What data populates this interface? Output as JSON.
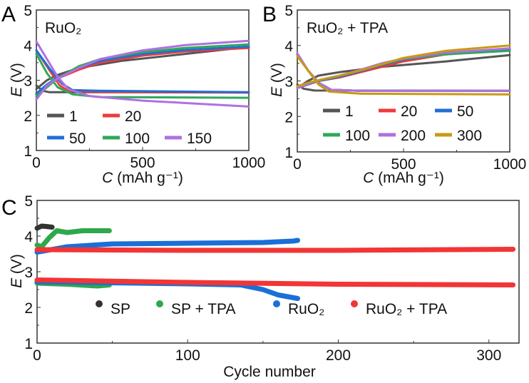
{
  "chart_data": [
    {
      "panel": "A",
      "type": "line",
      "title": "RuO₂",
      "xlabel_italic": "C",
      "xlabel": " (mAh g⁻¹)",
      "ylabel_italic": "E",
      "ylabel": " (V)",
      "xlim": [
        0,
        1000
      ],
      "ylim": [
        1,
        5
      ],
      "xticks": [
        "0",
        "500",
        "1000"
      ],
      "xtick_values": [
        0,
        500,
        1000
      ],
      "yticks": [
        "1",
        "2",
        "3",
        "4",
        "5"
      ],
      "ytick_values": [
        1,
        2,
        3,
        4,
        5
      ],
      "legend_placement": "lower-left",
      "series": [
        {
          "name": "1",
          "color": "#555555",
          "discharge": [
            [
              0,
              2.85
            ],
            [
              30,
              2.7
            ],
            [
              60,
              2.66
            ],
            [
              200,
              2.66
            ],
            [
              1000,
              2.65
            ]
          ],
          "charge": [
            [
              0,
              2.75
            ],
            [
              50,
              3.0
            ],
            [
              100,
              3.15
            ],
            [
              200,
              3.35
            ],
            [
              400,
              3.55
            ],
            [
              700,
              3.75
            ],
            [
              1000,
              3.95
            ]
          ]
        },
        {
          "name": "20",
          "color": "#f03a3a",
          "discharge": [
            [
              0,
              3.85
            ],
            [
              60,
              3.3
            ],
            [
              110,
              2.85
            ],
            [
              150,
              2.7
            ],
            [
              300,
              2.67
            ],
            [
              1000,
              2.65
            ]
          ],
          "charge": [
            [
              0,
              2.6
            ],
            [
              50,
              2.85
            ],
            [
              100,
              3.05
            ],
            [
              200,
              3.3
            ],
            [
              300,
              3.5
            ],
            [
              500,
              3.7
            ],
            [
              700,
              3.82
            ],
            [
              1000,
              3.92
            ]
          ]
        },
        {
          "name": "50",
          "color": "#1f6fd6",
          "discharge": [
            [
              0,
              3.85
            ],
            [
              60,
              3.35
            ],
            [
              120,
              2.9
            ],
            [
              170,
              2.72
            ],
            [
              300,
              2.7
            ],
            [
              1000,
              2.66
            ]
          ],
          "charge": [
            [
              0,
              2.62
            ],
            [
              50,
              2.88
            ],
            [
              100,
              3.08
            ],
            [
              200,
              3.35
            ],
            [
              300,
              3.55
            ],
            [
              500,
              3.75
            ],
            [
              700,
              3.86
            ],
            [
              1000,
              3.96
            ]
          ]
        },
        {
          "name": "100",
          "color": "#2fa85a",
          "discharge": [
            [
              0,
              3.75
            ],
            [
              50,
              3.2
            ],
            [
              100,
              2.8
            ],
            [
              170,
              2.6
            ],
            [
              300,
              2.52
            ],
            [
              1000,
              2.5
            ]
          ],
          "charge": [
            [
              0,
              2.55
            ],
            [
              100,
              3.05
            ],
            [
              200,
              3.4
            ],
            [
              300,
              3.6
            ],
            [
              500,
              3.8
            ],
            [
              700,
              3.92
            ],
            [
              1000,
              4.02
            ]
          ]
        },
        {
          "name": "150",
          "color": "#b070e0",
          "discharge": [
            [
              0,
              4.1
            ],
            [
              50,
              3.6
            ],
            [
              100,
              3.1
            ],
            [
              150,
              2.75
            ],
            [
              250,
              2.55
            ],
            [
              500,
              2.42
            ],
            [
              1000,
              2.25
            ]
          ],
          "charge": [
            [
              0,
              2.45
            ],
            [
              50,
              2.85
            ],
            [
              100,
              3.05
            ],
            [
              200,
              3.35
            ],
            [
              300,
              3.6
            ],
            [
              500,
              3.85
            ],
            [
              700,
              4.0
            ],
            [
              1000,
              4.12
            ]
          ]
        }
      ]
    },
    {
      "panel": "B",
      "type": "line",
      "title": "RuO₂ + TPA",
      "xlabel_italic": "C",
      "xlabel": " (mAh g⁻¹)",
      "ylabel_italic": "E",
      "ylabel": " (V)",
      "xlim": [
        0,
        1000
      ],
      "ylim": [
        1,
        5
      ],
      "xticks": [
        "0",
        "500",
        "1000"
      ],
      "xtick_values": [
        0,
        500,
        1000
      ],
      "yticks": [
        "1",
        "2",
        "3",
        "4",
        "5"
      ],
      "ytick_values": [
        1,
        2,
        3,
        4,
        5
      ],
      "legend_placement": "lower-left",
      "series": [
        {
          "name": "1",
          "color": "#555555",
          "discharge": [
            [
              0,
              2.9
            ],
            [
              30,
              2.78
            ],
            [
              80,
              2.73
            ],
            [
              1000,
              2.72
            ]
          ],
          "charge": [
            [
              0,
              2.8
            ],
            [
              50,
              3.0
            ],
            [
              100,
              3.15
            ],
            [
              200,
              3.25
            ],
            [
              400,
              3.4
            ],
            [
              700,
              3.55
            ],
            [
              1000,
              3.73
            ]
          ]
        },
        {
          "name": "20",
          "color": "#f03a3a",
          "discharge": [
            [
              0,
              3.75
            ],
            [
              50,
              3.3
            ],
            [
              100,
              2.95
            ],
            [
              160,
              2.75
            ],
            [
              300,
              2.72
            ],
            [
              1000,
              2.72
            ]
          ],
          "charge": [
            [
              0,
              2.8
            ],
            [
              100,
              3.0
            ],
            [
              200,
              3.1
            ],
            [
              300,
              3.25
            ],
            [
              400,
              3.4
            ],
            [
              500,
              3.55
            ],
            [
              700,
              3.75
            ],
            [
              1000,
              3.88
            ]
          ]
        },
        {
          "name": "50",
          "color": "#1f6fd6",
          "discharge": [
            [
              0,
              3.75
            ],
            [
              50,
              3.3
            ],
            [
              100,
              2.95
            ],
            [
              160,
              2.75
            ],
            [
              300,
              2.72
            ],
            [
              1000,
              2.72
            ]
          ],
          "charge": [
            [
              0,
              2.8
            ],
            [
              100,
              3.0
            ],
            [
              200,
              3.12
            ],
            [
              300,
              3.28
            ],
            [
              400,
              3.45
            ],
            [
              500,
              3.6
            ],
            [
              700,
              3.78
            ],
            [
              1000,
              3.9
            ]
          ]
        },
        {
          "name": "100",
          "color": "#2fa85a",
          "discharge": [
            [
              0,
              3.75
            ],
            [
              50,
              3.3
            ],
            [
              100,
              2.95
            ],
            [
              160,
              2.75
            ],
            [
              300,
              2.72
            ],
            [
              1000,
              2.72
            ]
          ],
          "charge": [
            [
              0,
              2.82
            ],
            [
              100,
              3.02
            ],
            [
              200,
              3.15
            ],
            [
              300,
              3.3
            ],
            [
              400,
              3.47
            ],
            [
              500,
              3.62
            ],
            [
              700,
              3.75
            ],
            [
              1000,
              3.85
            ]
          ]
        },
        {
          "name": "200",
          "color": "#b070e0",
          "discharge": [
            [
              0,
              3.78
            ],
            [
              50,
              3.3
            ],
            [
              100,
              2.95
            ],
            [
              160,
              2.75
            ],
            [
              300,
              2.72
            ],
            [
              1000,
              2.72
            ]
          ],
          "charge": [
            [
              0,
              2.8
            ],
            [
              100,
              3.02
            ],
            [
              200,
              3.15
            ],
            [
              300,
              3.32
            ],
            [
              400,
              3.5
            ],
            [
              500,
              3.63
            ],
            [
              700,
              3.8
            ],
            [
              1000,
              3.92
            ]
          ]
        },
        {
          "name": "300",
          "color": "#c89a10",
          "discharge": [
            [
              0,
              3.7
            ],
            [
              50,
              3.3
            ],
            [
              100,
              2.9
            ],
            [
              150,
              2.7
            ],
            [
              300,
              2.64
            ],
            [
              1000,
              2.62
            ]
          ],
          "charge": [
            [
              0,
              2.85
            ],
            [
              50,
              2.95
            ],
            [
              200,
              3.15
            ],
            [
              300,
              3.3
            ],
            [
              500,
              3.65
            ],
            [
              700,
              3.85
            ],
            [
              1000,
              4.0
            ]
          ]
        }
      ]
    },
    {
      "panel": "C",
      "type": "scatter",
      "xlabel": "Cycle number",
      "ylabel_italic": "E",
      "ylabel": " (V)",
      "xlim": [
        0,
        320
      ],
      "ylim": [
        1,
        5
      ],
      "xticks": [
        "0",
        "100",
        "200",
        "300"
      ],
      "xtick_values": [
        0,
        100,
        200,
        300
      ],
      "yticks": [
        "1",
        "2",
        "3",
        "4",
        "5"
      ],
      "ytick_values": [
        1,
        2,
        3,
        4,
        5
      ],
      "legend_placement": "bottom",
      "series": [
        {
          "name": "SP",
          "color": "#333333",
          "charge": [
            [
              0,
              4.22
            ],
            [
              3,
              4.28
            ],
            [
              6,
              4.27
            ],
            [
              10,
              4.25
            ]
          ],
          "discharge": [
            [
              0,
              2.7
            ],
            [
              5,
              2.7
            ],
            [
              10,
              2.69
            ]
          ]
        },
        {
          "name": "SP + TPA",
          "color": "#2ea84a",
          "charge": [
            [
              0,
              3.75
            ],
            [
              3,
              3.7
            ],
            [
              8,
              3.95
            ],
            [
              13,
              4.15
            ],
            [
              20,
              4.1
            ],
            [
              30,
              4.15
            ],
            [
              48,
              4.15
            ]
          ],
          "discharge": [
            [
              0,
              2.68
            ],
            [
              20,
              2.65
            ],
            [
              40,
              2.6
            ],
            [
              48,
              2.63
            ]
          ]
        },
        {
          "name": "RuO₂",
          "color": "#1a6fd8",
          "charge": [
            [
              0,
              3.55
            ],
            [
              20,
              3.7
            ],
            [
              50,
              3.78
            ],
            [
              100,
              3.8
            ],
            [
              150,
              3.82
            ],
            [
              170,
              3.86
            ],
            [
              173,
              3.88
            ]
          ],
          "discharge": [
            [
              0,
              2.72
            ],
            [
              100,
              2.66
            ],
            [
              135,
              2.63
            ],
            [
              150,
              2.5
            ],
            [
              160,
              2.35
            ],
            [
              173,
              2.25
            ]
          ]
        },
        {
          "name": "RuO₂ + TPA",
          "color": "#f23535",
          "charge": [
            [
              0,
              3.62
            ],
            [
              100,
              3.6
            ],
            [
              200,
              3.6
            ],
            [
              316,
              3.63
            ]
          ],
          "discharge": [
            [
              0,
              2.77
            ],
            [
              100,
              2.7
            ],
            [
              200,
              2.65
            ],
            [
              316,
              2.63
            ]
          ]
        }
      ]
    }
  ]
}
